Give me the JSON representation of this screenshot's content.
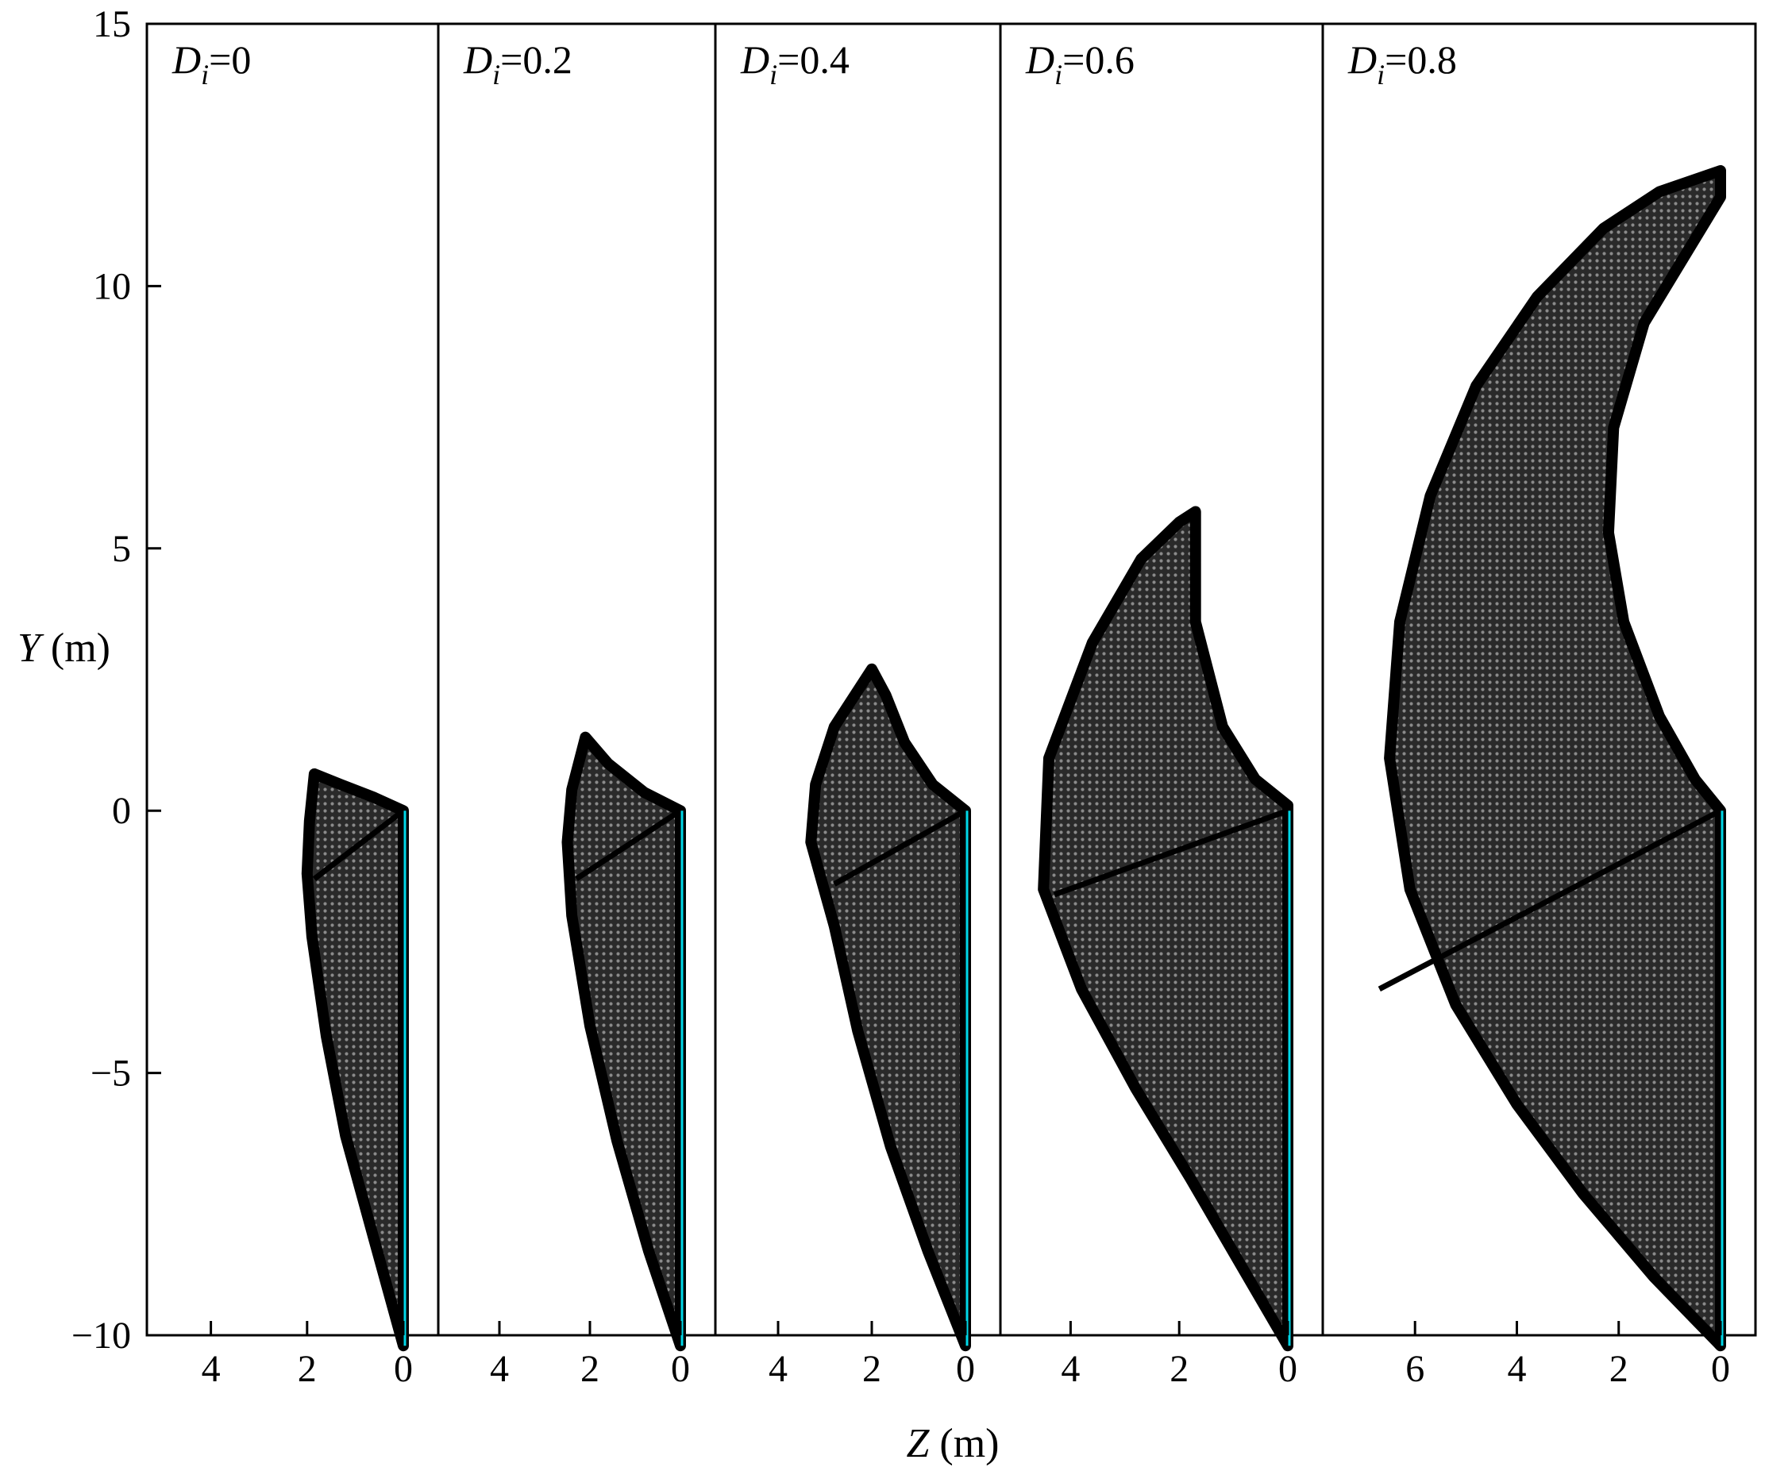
{
  "chart_data": {
    "type": "area",
    "y_axis": {
      "label_symbol": "Y",
      "label_unit": " (m)",
      "range": [
        -10,
        15
      ],
      "ticks": [
        15,
        10,
        5,
        0,
        -5,
        -10
      ],
      "tick_labels": [
        "15",
        "10",
        "5",
        "0",
        "−5",
        "−10"
      ]
    },
    "x_axis": {
      "label_symbol": "Z",
      "label_unit": " (m)",
      "direction": "decreasing to the right"
    },
    "colors": {
      "mesh": "#000000",
      "cut_edge": "#00d8e8"
    },
    "panels": [
      {
        "param_symbol": "D",
        "param_subscript": "i",
        "param_value": "=0",
        "z_range": [
          5,
          0
        ],
        "ticks": [
          4,
          2,
          0
        ],
        "tick_labels": [
          "4",
          "2",
          "0"
        ],
        "outline": [
          [
            0,
            -10.2
          ],
          [
            0.6,
            -8.2
          ],
          [
            1.2,
            -6.2
          ],
          [
            1.6,
            -4.3
          ],
          [
            1.9,
            -2.4
          ],
          [
            2.0,
            -1.2
          ],
          [
            1.95,
            -0.2
          ],
          [
            1.85,
            0.7
          ],
          [
            1.3,
            0.5
          ],
          [
            0.6,
            0.25
          ],
          [
            0,
            0
          ]
        ],
        "seam_end": [
          1.85,
          -1.3
        ]
      },
      {
        "param_symbol": "D",
        "param_subscript": "i",
        "param_value": "=0.2",
        "z_range": [
          5,
          0
        ],
        "ticks": [
          4,
          2,
          0
        ],
        "tick_labels": [
          "4",
          "2",
          "0"
        ],
        "outline": [
          [
            0,
            -10.2
          ],
          [
            0.7,
            -8.4
          ],
          [
            1.4,
            -6.3
          ],
          [
            2.0,
            -4.1
          ],
          [
            2.4,
            -2.0
          ],
          [
            2.5,
            -0.6
          ],
          [
            2.4,
            0.4
          ],
          [
            2.1,
            1.4
          ],
          [
            1.6,
            0.9
          ],
          [
            0.8,
            0.35
          ],
          [
            0,
            0
          ]
        ],
        "seam_end": [
          2.3,
          -1.3
        ]
      },
      {
        "param_symbol": "D",
        "param_subscript": "i",
        "param_value": "=0.4",
        "z_range": [
          5,
          0
        ],
        "ticks": [
          4,
          2,
          0
        ],
        "tick_labels": [
          "4",
          "2",
          "0"
        ],
        "outline": [
          [
            0,
            -10.2
          ],
          [
            0.8,
            -8.4
          ],
          [
            1.6,
            -6.4
          ],
          [
            2.3,
            -4.2
          ],
          [
            2.8,
            -2.2
          ],
          [
            3.3,
            -0.6
          ],
          [
            3.2,
            0.5
          ],
          [
            2.8,
            1.6
          ],
          [
            2.0,
            2.7
          ],
          [
            1.7,
            2.2
          ],
          [
            1.3,
            1.3
          ],
          [
            0.7,
            0.5
          ],
          [
            0,
            0
          ]
        ],
        "seam_end": [
          2.8,
          -1.4
        ]
      },
      {
        "param_symbol": "D",
        "param_subscript": "i",
        "param_value": "=0.6",
        "z_range": [
          5,
          0
        ],
        "ticks": [
          4,
          2,
          0
        ],
        "tick_labels": [
          "4",
          "2",
          "0"
        ],
        "outline": [
          [
            0,
            -10.2
          ],
          [
            0.9,
            -8.6
          ],
          [
            1.8,
            -7.0
          ],
          [
            2.8,
            -5.3
          ],
          [
            3.8,
            -3.4
          ],
          [
            4.5,
            -1.5
          ],
          [
            4.4,
            1.0
          ],
          [
            3.6,
            3.2
          ],
          [
            2.7,
            4.8
          ],
          [
            2.0,
            5.5
          ],
          [
            1.7,
            5.7
          ],
          [
            1.7,
            3.6
          ],
          [
            1.2,
            1.6
          ],
          [
            0.6,
            0.6
          ],
          [
            0,
            0.1
          ]
        ],
        "seam_end": [
          4.3,
          -1.6
        ]
      },
      {
        "param_symbol": "D",
        "param_subscript": "i",
        "param_value": "=0.8",
        "z_range": [
          7.5,
          0
        ],
        "ticks": [
          6,
          4,
          2,
          0
        ],
        "tick_labels": [
          "6",
          "4",
          "2",
          "0"
        ],
        "outline": [
          [
            0,
            -10.2
          ],
          [
            1.3,
            -8.9
          ],
          [
            2.7,
            -7.3
          ],
          [
            4.0,
            -5.6
          ],
          [
            5.2,
            -3.7
          ],
          [
            6.1,
            -1.5
          ],
          [
            6.5,
            1.0
          ],
          [
            6.3,
            3.6
          ],
          [
            5.7,
            6.0
          ],
          [
            4.8,
            8.1
          ],
          [
            3.6,
            9.8
          ],
          [
            2.3,
            11.1
          ],
          [
            1.2,
            11.8
          ],
          [
            0,
            12.2
          ],
          [
            0,
            11.7
          ],
          [
            1.5,
            9.3
          ],
          [
            2.1,
            7.3
          ],
          [
            2.2,
            5.3
          ],
          [
            1.9,
            3.6
          ],
          [
            1.2,
            1.8
          ],
          [
            0.5,
            0.6
          ],
          [
            0,
            0
          ]
        ],
        "seam_end": [
          6.7,
          -3.4
        ]
      }
    ]
  }
}
